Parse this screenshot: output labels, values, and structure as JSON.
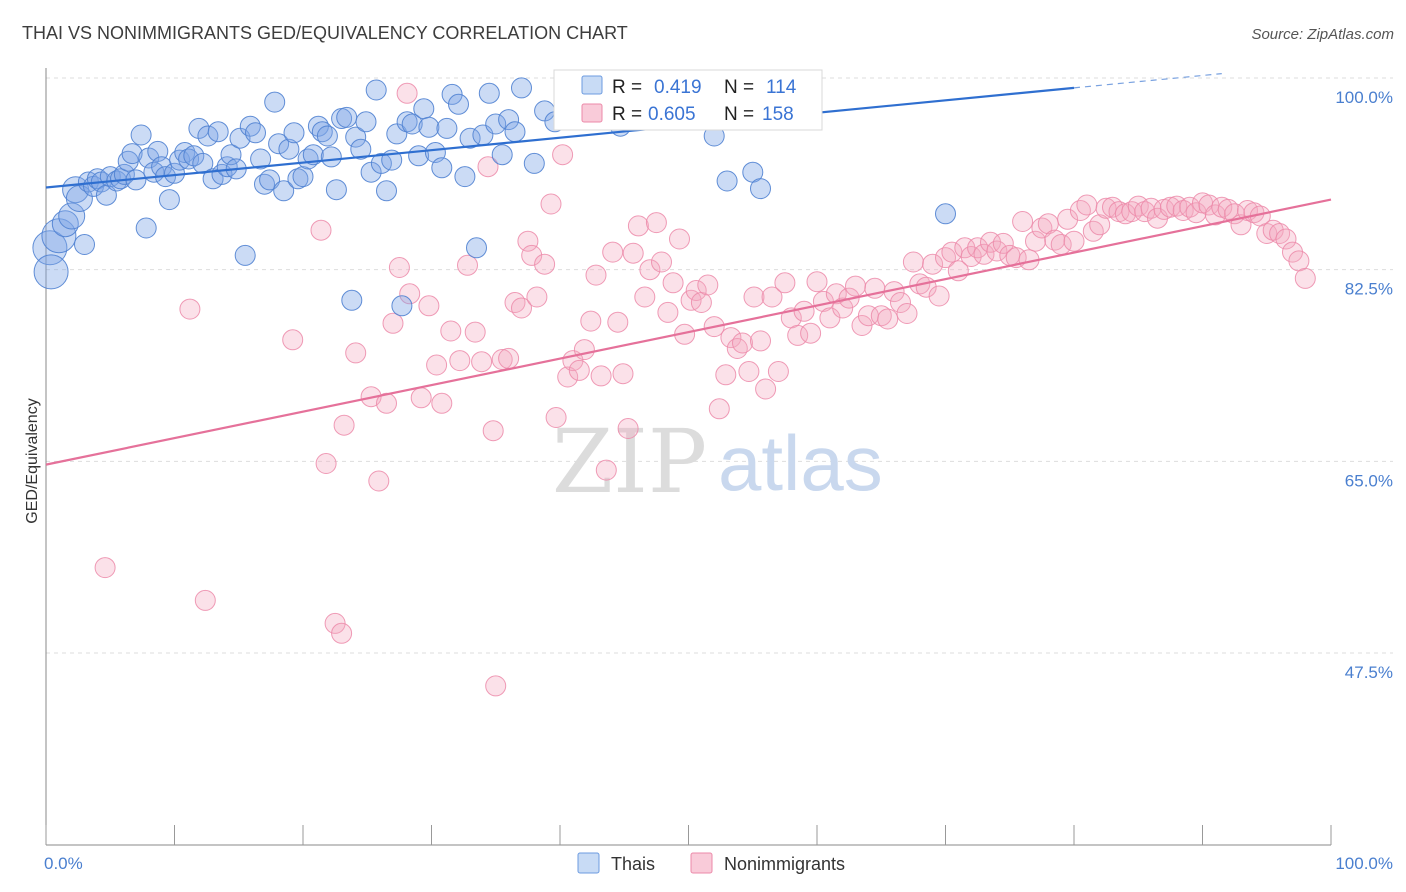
{
  "header": {
    "title": "THAI VS NONIMMIGRANTS GED/EQUIVALENCY CORRELATION CHART",
    "source": "Source: ZipAtlas.com"
  },
  "legend": {
    "r_label": "R =",
    "n_label": "N =",
    "thai": {
      "r": "0.419",
      "n": "114",
      "color": "#6c9be0"
    },
    "nonimmigrants": {
      "r": "0.605",
      "n": "158",
      "color": "#ec8aa9"
    }
  },
  "bottom_legend": {
    "thai": "Thais",
    "nonimmigrants": "Nonimmigrants"
  },
  "watermark": {
    "zip": "ZIP",
    "atlas": "atlas"
  },
  "chart_data": {
    "type": "scatter",
    "title": "THAI VS NONIMMIGRANTS GED/EQUIVALENCY CORRELATION CHART",
    "xlabel": "",
    "ylabel": "GED/Equivalency",
    "x_tick_labels": [
      "0.0%",
      "100.0%"
    ],
    "y_tick_labels": [
      "100.0%",
      "82.5%",
      "65.0%",
      "47.5%"
    ],
    "y_ticks": [
      100.0,
      82.5,
      65.0,
      47.5
    ],
    "xlim": [
      0,
      100
    ],
    "ylim": [
      30.5,
      102
    ],
    "grid": true,
    "legend_position": "top-center",
    "series": [
      {
        "name": "Thais",
        "color": "#6c9be0",
        "trend": {
          "x0": 0,
          "y0": 90.0,
          "x1": 80,
          "y1": 99.1,
          "dash_to_x": 91.5,
          "dash_to_y": 100.4
        },
        "points": [
          [
            0.3,
            84.5
          ],
          [
            0.4,
            82.3
          ],
          [
            1,
            85.6
          ],
          [
            1.5,
            86.7
          ],
          [
            2,
            87.4
          ],
          [
            2.3,
            89.8
          ],
          [
            2.6,
            89.0
          ],
          [
            3,
            84.8
          ],
          [
            3.3,
            90.5
          ],
          [
            3.7,
            90.1
          ],
          [
            4,
            90.8
          ],
          [
            4.3,
            90.5
          ],
          [
            4.7,
            89.3
          ],
          [
            5,
            91.0
          ],
          [
            5.5,
            90.6
          ],
          [
            5.8,
            90.8
          ],
          [
            6.1,
            91.2
          ],
          [
            6.4,
            92.4
          ],
          [
            6.7,
            93.1
          ],
          [
            7,
            90.7
          ],
          [
            7.4,
            94.8
          ],
          [
            7.8,
            86.3
          ],
          [
            8,
            92.7
          ],
          [
            8.4,
            91.4
          ],
          [
            8.7,
            93.3
          ],
          [
            9,
            91.9
          ],
          [
            9.3,
            91.0
          ],
          [
            9.6,
            88.9
          ],
          [
            10,
            91.3
          ],
          [
            10.4,
            92.5
          ],
          [
            10.8,
            93.2
          ],
          [
            11.1,
            92.6
          ],
          [
            11.5,
            92.9
          ],
          [
            11.9,
            95.4
          ],
          [
            12.2,
            92.2
          ],
          [
            12.6,
            94.7
          ],
          [
            13,
            90.8
          ],
          [
            13.4,
            95.1
          ],
          [
            13.7,
            91.2
          ],
          [
            14.1,
            91.9
          ],
          [
            14.4,
            93.0
          ],
          [
            14.8,
            91.7
          ],
          [
            15.1,
            94.5
          ],
          [
            15.5,
            83.8
          ],
          [
            15.9,
            95.6
          ],
          [
            16.3,
            95.0
          ],
          [
            16.7,
            92.6
          ],
          [
            17,
            90.3
          ],
          [
            17.4,
            90.7
          ],
          [
            17.8,
            97.8
          ],
          [
            18.1,
            94.0
          ],
          [
            18.5,
            89.7
          ],
          [
            18.9,
            93.5
          ],
          [
            19.3,
            95.0
          ],
          [
            19.6,
            90.8
          ],
          [
            20,
            91.0
          ],
          [
            20.4,
            92.6
          ],
          [
            20.8,
            93.0
          ],
          [
            21.2,
            95.6
          ],
          [
            21.5,
            95.1
          ],
          [
            21.9,
            94.7
          ],
          [
            22.2,
            92.8
          ],
          [
            22.6,
            89.8
          ],
          [
            23,
            96.3
          ],
          [
            23.4,
            96.4
          ],
          [
            23.8,
            79.7
          ],
          [
            24.1,
            94.6
          ],
          [
            24.5,
            93.5
          ],
          [
            24.9,
            96.0
          ],
          [
            25.3,
            91.4
          ],
          [
            25.7,
            98.9
          ],
          [
            26.1,
            92.2
          ],
          [
            26.5,
            89.7
          ],
          [
            26.9,
            92.5
          ],
          [
            27.3,
            94.9
          ],
          [
            27.7,
            79.2
          ],
          [
            28.1,
            96.0
          ],
          [
            28.5,
            95.8
          ],
          [
            29,
            92.9
          ],
          [
            29.4,
            97.2
          ],
          [
            29.8,
            95.5
          ],
          [
            30.3,
            93.2
          ],
          [
            30.8,
            91.8
          ],
          [
            31.2,
            95.4
          ],
          [
            31.6,
            98.5
          ],
          [
            32.1,
            97.6
          ],
          [
            32.6,
            91.0
          ],
          [
            33,
            94.5
          ],
          [
            33.5,
            84.5
          ],
          [
            34,
            94.8
          ],
          [
            34.5,
            98.6
          ],
          [
            35,
            95.8
          ],
          [
            35.5,
            93.0
          ],
          [
            36,
            96.2
          ],
          [
            36.5,
            95.1
          ],
          [
            37,
            99.1
          ],
          [
            38,
            92.2
          ],
          [
            38.8,
            97.0
          ],
          [
            39.6,
            96.0
          ],
          [
            40.5,
            98.0
          ],
          [
            41.5,
            97.8
          ],
          [
            42.5,
            98.8
          ],
          [
            44,
            99.3
          ],
          [
            46,
            99.1
          ],
          [
            52,
            94.7
          ],
          [
            53,
            90.6
          ],
          [
            55,
            91.4
          ],
          [
            55.6,
            89.9
          ],
          [
            70,
            87.6
          ],
          [
            44.7,
            95.6
          ]
        ]
      },
      {
        "name": "Nonimmigrants",
        "color": "#ec8aa9",
        "trend": {
          "x0": 0,
          "y0": 64.7,
          "x1": 100,
          "y1": 88.9
        },
        "points": [
          [
            4.6,
            55.3
          ],
          [
            11.2,
            78.9
          ],
          [
            12.4,
            52.3
          ],
          [
            19.2,
            76.1
          ],
          [
            21.4,
            86.1
          ],
          [
            21.8,
            64.8
          ],
          [
            22.5,
            50.2
          ],
          [
            23,
            49.3
          ],
          [
            23.2,
            68.3
          ],
          [
            24.1,
            74.9
          ],
          [
            25.3,
            70.9
          ],
          [
            25.9,
            63.2
          ],
          [
            26.5,
            70.3
          ],
          [
            27,
            77.6
          ],
          [
            27.5,
            82.7
          ],
          [
            28.1,
            98.6
          ],
          [
            28.3,
            80.3
          ],
          [
            29.2,
            70.8
          ],
          [
            29.8,
            79.2
          ],
          [
            30.4,
            73.8
          ],
          [
            30.8,
            70.3
          ],
          [
            31.5,
            76.9
          ],
          [
            32.2,
            74.2
          ],
          [
            32.8,
            82.9
          ],
          [
            33.4,
            76.8
          ],
          [
            33.9,
            74.1
          ],
          [
            34.4,
            91.9
          ],
          [
            34.8,
            67.8
          ],
          [
            35,
            44.5
          ],
          [
            35.5,
            74.3
          ],
          [
            36,
            74.4
          ],
          [
            36.5,
            79.5
          ],
          [
            37,
            79.0
          ],
          [
            37.5,
            85.1
          ],
          [
            37.8,
            83.8
          ],
          [
            38.2,
            80.0
          ],
          [
            38.8,
            83.0
          ],
          [
            39.3,
            88.5
          ],
          [
            39.7,
            69.0
          ],
          [
            40.2,
            93.0
          ],
          [
            40.6,
            72.7
          ],
          [
            41,
            74.2
          ],
          [
            41.5,
            73.3
          ],
          [
            41.9,
            75.2
          ],
          [
            42.4,
            77.8
          ],
          [
            42.8,
            82.0
          ],
          [
            43.2,
            72.8
          ],
          [
            43.6,
            64.2
          ],
          [
            44.1,
            84.1
          ],
          [
            44.5,
            77.7
          ],
          [
            44.9,
            73.0
          ],
          [
            45.3,
            68.0
          ],
          [
            45.7,
            84.0
          ],
          [
            46.1,
            86.5
          ],
          [
            46.6,
            80.0
          ],
          [
            47,
            82.5
          ],
          [
            47.5,
            86.8
          ],
          [
            47.9,
            83.2
          ],
          [
            48.4,
            78.6
          ],
          [
            48.8,
            81.3
          ],
          [
            49.3,
            85.3
          ],
          [
            49.7,
            76.6
          ],
          [
            50.2,
            79.7
          ],
          [
            50.6,
            80.6
          ],
          [
            51,
            79.5
          ],
          [
            51.5,
            81.1
          ],
          [
            52,
            77.3
          ],
          [
            52.4,
            69.8
          ],
          [
            52.9,
            72.9
          ],
          [
            53.3,
            76.3
          ],
          [
            53.8,
            75.3
          ],
          [
            54.2,
            75.8
          ],
          [
            54.7,
            73.2
          ],
          [
            55.1,
            80.0
          ],
          [
            55.6,
            76.0
          ],
          [
            56,
            71.6
          ],
          [
            56.5,
            80.0
          ],
          [
            57,
            73.2
          ],
          [
            57.5,
            81.3
          ],
          [
            58,
            78.1
          ],
          [
            58.5,
            76.5
          ],
          [
            59,
            78.7
          ],
          [
            59.5,
            76.7
          ],
          [
            60,
            81.4
          ],
          [
            60.5,
            79.6
          ],
          [
            61,
            78.1
          ],
          [
            61.5,
            80.3
          ],
          [
            62,
            79.0
          ],
          [
            62.5,
            79.9
          ],
          [
            63,
            81.0
          ],
          [
            63.5,
            77.4
          ],
          [
            64,
            78.3
          ],
          [
            64.5,
            80.8
          ],
          [
            65,
            78.3
          ],
          [
            65.5,
            78.0
          ],
          [
            66,
            80.5
          ],
          [
            66.5,
            79.5
          ],
          [
            67,
            78.5
          ],
          [
            67.5,
            83.2
          ],
          [
            68,
            81.2
          ],
          [
            68.5,
            80.9
          ],
          [
            69,
            83.0
          ],
          [
            69.5,
            80.1
          ],
          [
            70,
            83.6
          ],
          [
            70.5,
            84.1
          ],
          [
            71,
            82.4
          ],
          [
            71.5,
            84.5
          ],
          [
            72,
            83.7
          ],
          [
            72.5,
            84.5
          ],
          [
            73,
            83.9
          ],
          [
            73.5,
            85.0
          ],
          [
            74,
            84.2
          ],
          [
            74.5,
            84.9
          ],
          [
            75,
            83.8
          ],
          [
            75.5,
            83.6
          ],
          [
            76,
            86.9
          ],
          [
            76.5,
            83.4
          ],
          [
            77,
            85.1
          ],
          [
            77.5,
            86.3
          ],
          [
            78,
            86.7
          ],
          [
            78.5,
            85.2
          ],
          [
            79,
            84.8
          ],
          [
            79.5,
            87.1
          ],
          [
            80,
            85.1
          ],
          [
            80.5,
            87.9
          ],
          [
            81,
            88.4
          ],
          [
            81.5,
            86.0
          ],
          [
            82,
            86.6
          ],
          [
            82.5,
            88.1
          ],
          [
            83,
            88.2
          ],
          [
            83.5,
            87.8
          ],
          [
            84,
            87.6
          ],
          [
            84.5,
            87.8
          ],
          [
            85,
            88.3
          ],
          [
            85.5,
            87.8
          ],
          [
            86,
            88.1
          ],
          [
            86.5,
            87.2
          ],
          [
            87,
            88.0
          ],
          [
            87.5,
            88.2
          ],
          [
            88,
            88.3
          ],
          [
            88.5,
            87.9
          ],
          [
            89,
            88.2
          ],
          [
            89.5,
            87.7
          ],
          [
            90,
            88.6
          ],
          [
            90.5,
            88.4
          ],
          [
            91,
            87.5
          ],
          [
            91.5,
            88.2
          ],
          [
            92,
            88.0
          ],
          [
            92.5,
            87.6
          ],
          [
            93,
            86.6
          ],
          [
            93.5,
            87.9
          ],
          [
            94,
            87.7
          ],
          [
            94.5,
            87.4
          ],
          [
            95,
            85.8
          ],
          [
            95.5,
            86.1
          ],
          [
            96,
            85.8
          ],
          [
            96.5,
            85.3
          ],
          [
            97,
            84.1
          ],
          [
            97.5,
            83.3
          ],
          [
            98,
            81.7
          ]
        ]
      }
    ]
  }
}
